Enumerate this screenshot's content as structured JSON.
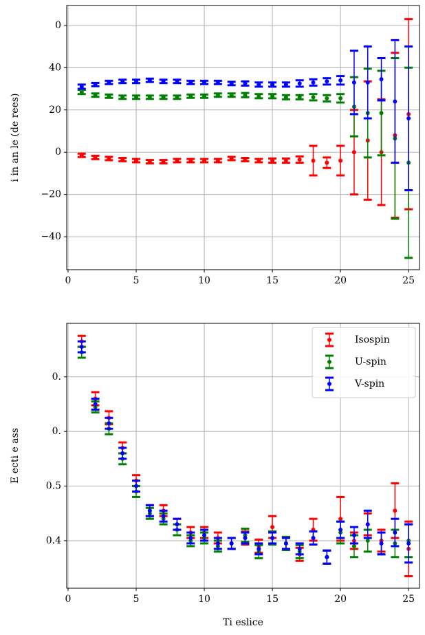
{
  "chart_data": [
    {
      "type": "errorbar",
      "ylabel": "i in an le (de rees)",
      "x": [
        1,
        2,
        3,
        4,
        5,
        6,
        7,
        8,
        9,
        10,
        11,
        12,
        13,
        14,
        15,
        16,
        17,
        18,
        19,
        20,
        21,
        22,
        23,
        24,
        25
      ],
      "xlim": [
        -0.1,
        25.8
      ],
      "xticks": [
        0,
        5,
        10,
        15,
        20,
        25
      ],
      "ylim": [
        -55.6,
        69.4
      ],
      "yticks": [
        {
          "value": 60,
          "label": "0"
        },
        40,
        20,
        0,
        {
          "value": -20,
          "label": "−20"
        },
        {
          "value": -40,
          "label": "−40"
        }
      ],
      "grid": true,
      "series": [
        {
          "color": "#ff0000",
          "values": [
            -1.5,
            -2.5,
            -3,
            -3.5,
            -4,
            -4.5,
            -4.5,
            -4,
            -4,
            -4,
            -4,
            -3,
            -3.5,
            -4,
            -4,
            -4,
            -3.5,
            -4,
            -5,
            -4,
            0,
            5.5,
            0,
            8,
            18
          ],
          "errors": [
            0.8,
            0.8,
            0.8,
            0.8,
            0.8,
            0.8,
            0.8,
            0.8,
            0.8,
            0.8,
            0.8,
            0.8,
            0.8,
            0.8,
            1,
            1,
            1.5,
            7,
            2.5,
            7,
            20,
            28,
            25,
            39,
            45
          ]
        },
        {
          "color": "#008000",
          "values": [
            28.5,
            27,
            26.5,
            26,
            26,
            26,
            26,
            26,
            26.5,
            26.5,
            27,
            27,
            27,
            26.5,
            26.5,
            26,
            26,
            26,
            25.5,
            25.5,
            21.5,
            18.5,
            18.5,
            6.5,
            -5
          ],
          "errors": [
            1,
            0.8,
            0.8,
            0.8,
            0.8,
            0.8,
            0.8,
            0.8,
            0.8,
            0.8,
            0.8,
            0.8,
            1,
            1,
            1,
            1,
            1,
            1.5,
            1.5,
            2,
            14,
            21,
            20,
            38,
            45
          ]
        },
        {
          "color": "#0000ff",
          "values": [
            31,
            32,
            33,
            33.5,
            33.5,
            34,
            33.5,
            33.5,
            33,
            33,
            33,
            32.5,
            32.5,
            32,
            32,
            32,
            32.5,
            33,
            33.5,
            34,
            33,
            33,
            34.5,
            24,
            16
          ],
          "errors": [
            1,
            0.8,
            0.8,
            0.8,
            0.8,
            0.8,
            0.8,
            0.8,
            0.8,
            0.8,
            0.8,
            0.8,
            1,
            1,
            1,
            1,
            1.5,
            1.5,
            1.5,
            2,
            15,
            17,
            10,
            29,
            34
          ]
        }
      ]
    },
    {
      "type": "errorbar",
      "ylabel": "E ecti e ass",
      "xlabel": "Ti eslice",
      "x": [
        1,
        2,
        3,
        4,
        5,
        6,
        7,
        8,
        9,
        10,
        11,
        12,
        13,
        14,
        15,
        16,
        17,
        18,
        19,
        20,
        21,
        22,
        23,
        24,
        25
      ],
      "xlim": [
        -0.1,
        25.8
      ],
      "xticks": [
        0,
        5,
        10,
        15,
        20,
        25
      ],
      "ylim": [
        0.313,
        0.798
      ],
      "yticks": [
        {
          "value": 0.7,
          "label": "0."
        },
        {
          "value": 0.6,
          "label": "0."
        },
        0.5,
        0.4
      ],
      "grid": true,
      "legend": "upper right",
      "series": [
        {
          "name": "Isospin",
          "color": "#ff0000",
          "values": [
            0.765,
            0.66,
            0.625,
            0.57,
            0.51,
            0.455,
            0.455,
            0.43,
            0.415,
            0.415,
            0.405,
            0.395,
            0.405,
            0.39,
            0.425,
            0.395,
            0.375,
            0.42,
            0.37,
            0.44,
            0.4,
            0.43,
            0.4,
            0.455,
            0.385
          ],
          "errors": [
            0.01,
            0.012,
            0.012,
            0.01,
            0.01,
            0.01,
            0.01,
            0.01,
            0.01,
            0.01,
            0.01,
            0.01,
            0.012,
            0.012,
            0.02,
            0.012,
            0.012,
            0.02,
            0.012,
            0.04,
            0.015,
            0.02,
            0.02,
            0.05,
            0.05
          ]
        },
        {
          "name": "U-spin",
          "color": "#008000",
          "values": [
            0.745,
            0.645,
            0.605,
            0.55,
            0.49,
            0.45,
            0.44,
            0.42,
            0.4,
            0.405,
            0.39,
            0.395,
            0.41,
            0.38,
            0.405,
            0.395,
            0.38,
            0.405,
            0.37,
            0.415,
            0.39,
            0.4,
            0.395,
            0.395,
            0.4
          ],
          "errors": [
            0.01,
            0.01,
            0.01,
            0.01,
            0.01,
            0.01,
            0.01,
            0.01,
            0.01,
            0.01,
            0.01,
            0.01,
            0.012,
            0.012,
            0.012,
            0.012,
            0.012,
            0.012,
            0.012,
            0.02,
            0.02,
            0.02,
            0.02,
            0.025,
            0.03
          ]
        },
        {
          "name": "V-spin",
          "color": "#0000ff",
          "values": [
            0.755,
            0.65,
            0.615,
            0.56,
            0.5,
            0.455,
            0.445,
            0.43,
            0.405,
            0.41,
            0.395,
            0.395,
            0.405,
            0.385,
            0.405,
            0.395,
            0.385,
            0.405,
            0.37,
            0.42,
            0.41,
            0.43,
            0.395,
            0.415,
            0.395
          ],
          "errors": [
            0.01,
            0.01,
            0.01,
            0.01,
            0.01,
            0.01,
            0.01,
            0.01,
            0.01,
            0.01,
            0.01,
            0.01,
            0.01,
            0.01,
            0.01,
            0.01,
            0.01,
            0.012,
            0.012,
            0.015,
            0.015,
            0.025,
            0.02,
            0.025,
            0.035
          ]
        }
      ]
    }
  ]
}
